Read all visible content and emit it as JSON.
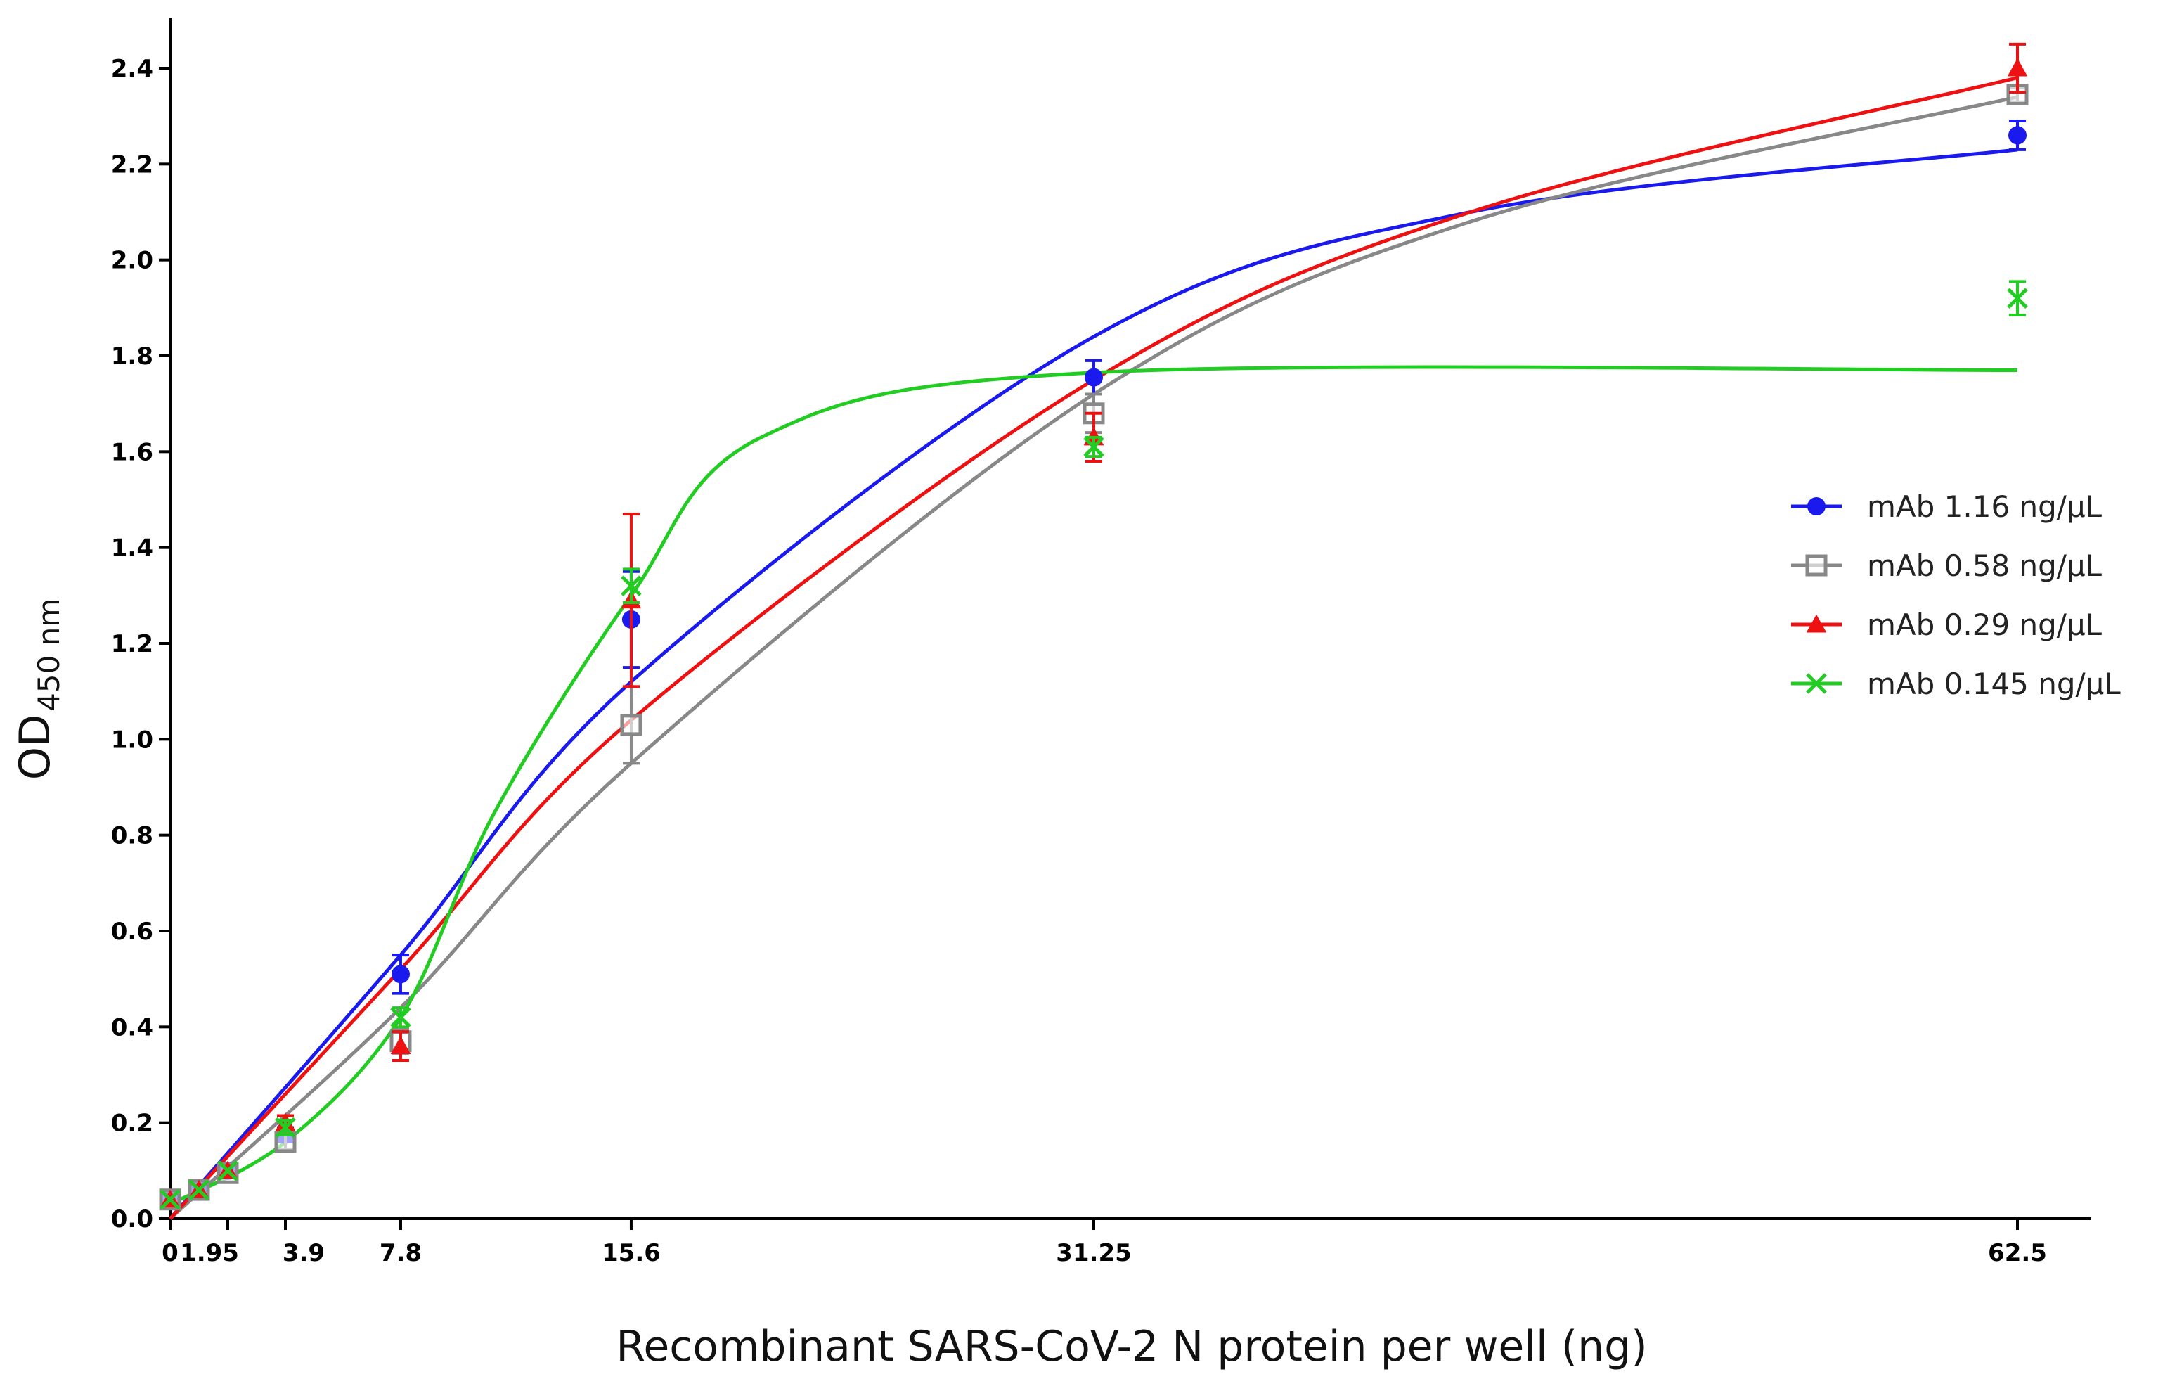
{
  "chart_data": {
    "type": "line",
    "title": "",
    "xlabel": "Recombinant SARS-CoV-2 N protein per well (ng)",
    "ylabel_main": "OD",
    "ylabel_sub": "450 nm",
    "xlim": [
      0,
      65
    ],
    "ylim": [
      0,
      2.5
    ],
    "x_ticks": [
      0,
      1.95,
      3.9,
      7.8,
      15.6,
      31.25,
      62.5
    ],
    "x_tick_labels": [
      "0",
      "1.95",
      "3.9",
      "7.8",
      "15.6",
      "31.25",
      "62.5"
    ],
    "y_ticks": [
      0,
      0.2,
      0.4,
      0.6,
      0.8,
      1.0,
      1.2,
      1.4,
      1.6,
      1.8,
      2.0,
      2.2,
      2.4
    ],
    "y_tick_labels": [
      "0.0",
      "0.2",
      "0.4",
      "0.6",
      "0.8",
      "1.0",
      "1.2",
      "1.4",
      "1.6",
      "1.8",
      "2.0",
      "2.2",
      "2.4"
    ],
    "legend_position": "right",
    "x": [
      0,
      0.975,
      1.95,
      3.9,
      7.8,
      15.6,
      31.25,
      62.5
    ],
    "series": [
      {
        "name": "mAb 1.16 ng/μL",
        "color": "#1a1aee",
        "marker": "circle",
        "values": [
          0.04,
          0.06,
          0.1,
          0.175,
          0.51,
          1.25,
          1.755,
          2.26
        ],
        "errors": [
          0.01,
          0.01,
          0.01,
          0.015,
          0.04,
          0.1,
          0.035,
          0.03
        ],
        "fit_points": [
          [
            0,
            0
          ],
          [
            7.8,
            0.55
          ],
          [
            15.6,
            1.12
          ],
          [
            31.25,
            1.84
          ],
          [
            44,
            2.1
          ],
          [
            62.5,
            2.23
          ]
        ]
      },
      {
        "name": "mAb 0.58 ng/μL",
        "color": "#888888",
        "marker": "square-open",
        "values": [
          0.04,
          0.06,
          0.095,
          0.16,
          0.37,
          1.03,
          1.68,
          2.345
        ],
        "errors": [
          0.01,
          0.01,
          0.01,
          0.015,
          0.025,
          0.08,
          0.04,
          0.015
        ],
        "fit_points": [
          [
            0,
            0
          ],
          [
            7.8,
            0.44
          ],
          [
            15.6,
            0.95
          ],
          [
            31.25,
            1.72
          ],
          [
            44,
            2.08
          ],
          [
            62.5,
            2.34
          ]
        ]
      },
      {
        "name": "mAb 0.29 ng/μL",
        "color": "#ee1111",
        "marker": "triangle",
        "values": [
          0.04,
          0.06,
          0.1,
          0.2,
          0.36,
          1.29,
          1.63,
          2.4
        ],
        "errors": [
          0.01,
          0.01,
          0.01,
          0.015,
          0.03,
          0.18,
          0.05,
          0.05
        ],
        "fit_points": [
          [
            0,
            0
          ],
          [
            7.8,
            0.52
          ],
          [
            15.6,
            1.04
          ],
          [
            31.25,
            1.75
          ],
          [
            44,
            2.1
          ],
          [
            62.5,
            2.38
          ]
        ]
      },
      {
        "name": "mAb 0.145 ng/μL",
        "color": "#22cc22",
        "marker": "x",
        "values": [
          0.04,
          0.06,
          0.1,
          0.19,
          0.42,
          1.32,
          1.61,
          1.92
        ],
        "errors": [
          0.01,
          0.01,
          0.01,
          0.015,
          0.02,
          0.035,
          0.02,
          0.035
        ],
        "fit_points": [
          [
            0,
            0.03
          ],
          [
            3.9,
            0.16
          ],
          [
            7.8,
            0.42
          ],
          [
            11,
            0.85
          ],
          [
            15.6,
            1.3
          ],
          [
            20,
            1.63
          ],
          [
            31.25,
            1.765
          ],
          [
            62.5,
            1.77
          ]
        ]
      }
    ]
  }
}
